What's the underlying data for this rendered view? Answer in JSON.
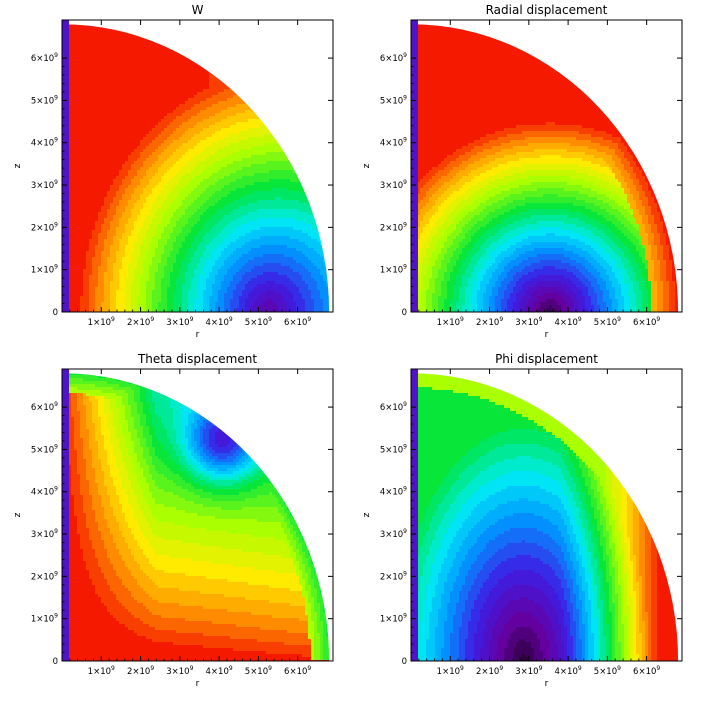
{
  "chart_data": [
    {
      "type": "heatmap",
      "id": "p1",
      "title": "W",
      "xlabel": "r",
      "ylabel": "z",
      "xticks": [
        {
          "mant": "1×10",
          "exp": "9"
        },
        {
          "mant": "2×10",
          "exp": "9"
        },
        {
          "mant": "3×10",
          "exp": "9"
        },
        {
          "mant": "4×10",
          "exp": "9"
        },
        {
          "mant": "5×10",
          "exp": "9"
        },
        {
          "mant": "6×10",
          "exp": "9"
        }
      ],
      "yticks": [
        {
          "mant": "0",
          "exp": ""
        },
        {
          "mant": "1×10",
          "exp": "9"
        },
        {
          "mant": "2×10",
          "exp": "9"
        },
        {
          "mant": "3×10",
          "exp": "9"
        },
        {
          "mant": "4×10",
          "exp": "9"
        },
        {
          "mant": "5×10",
          "exp": "9"
        },
        {
          "mant": "6×10",
          "exp": "9"
        }
      ],
      "xlim": [
        0,
        6900000000.0
      ],
      "ylim": [
        0,
        6900000000.0
      ],
      "domain_radius": 6800000000.0,
      "colormap": "rainbow",
      "levels": 30,
      "field": "w_pattern",
      "feature_center": [
        5250000000.0,
        100000000.0
      ],
      "shading": "filled-contours"
    },
    {
      "type": "heatmap",
      "id": "p2",
      "title": "Radial displacement",
      "xlabel": "r",
      "ylabel": "z",
      "xticks": [
        {
          "mant": "1×10",
          "exp": "9"
        },
        {
          "mant": "2×10",
          "exp": "9"
        },
        {
          "mant": "3×10",
          "exp": "9"
        },
        {
          "mant": "4×10",
          "exp": "9"
        },
        {
          "mant": "5×10",
          "exp": "9"
        },
        {
          "mant": "6×10",
          "exp": "9"
        }
      ],
      "yticks": [
        {
          "mant": "0",
          "exp": ""
        },
        {
          "mant": "1×10",
          "exp": "9"
        },
        {
          "mant": "2×10",
          "exp": "9"
        },
        {
          "mant": "3×10",
          "exp": "9"
        },
        {
          "mant": "4×10",
          "exp": "9"
        },
        {
          "mant": "5×10",
          "exp": "9"
        },
        {
          "mant": "6×10",
          "exp": "9"
        }
      ],
      "xlim": [
        0,
        6900000000.0
      ],
      "ylim": [
        0,
        6900000000.0
      ],
      "domain_radius": 6800000000.0,
      "colormap": "rainbow",
      "levels": 30,
      "field": "radial_pattern",
      "feature_center": [
        3550000000.0,
        0.0
      ],
      "shading": "filled-contours"
    },
    {
      "type": "heatmap",
      "id": "p3",
      "title": "Theta displacement",
      "xlabel": "r",
      "ylabel": "z",
      "xticks": [
        {
          "mant": "1×10",
          "exp": "9"
        },
        {
          "mant": "2×10",
          "exp": "9"
        },
        {
          "mant": "3×10",
          "exp": "9"
        },
        {
          "mant": "4×10",
          "exp": "9"
        },
        {
          "mant": "5×10",
          "exp": "9"
        },
        {
          "mant": "6×10",
          "exp": "9"
        }
      ],
      "yticks": [
        {
          "mant": "0",
          "exp": ""
        },
        {
          "mant": "1×10",
          "exp": "9"
        },
        {
          "mant": "2×10",
          "exp": "9"
        },
        {
          "mant": "3×10",
          "exp": "9"
        },
        {
          "mant": "4×10",
          "exp": "9"
        },
        {
          "mant": "5×10",
          "exp": "9"
        },
        {
          "mant": "6×10",
          "exp": "9"
        }
      ],
      "xlim": [
        0,
        6900000000.0
      ],
      "ylim": [
        0,
        6900000000.0
      ],
      "domain_radius": 6800000000.0,
      "colormap": "rainbow",
      "levels": 30,
      "field": "theta_pattern",
      "feature_center": [
        4100000000.0,
        5200000000.0
      ],
      "shading": "filled-contours"
    },
    {
      "type": "heatmap",
      "id": "p4",
      "title": "Phi displacement",
      "xlabel": "r",
      "ylabel": "z",
      "xticks": [
        {
          "mant": "1×10",
          "exp": "9"
        },
        {
          "mant": "2×10",
          "exp": "9"
        },
        {
          "mant": "3×10",
          "exp": "9"
        },
        {
          "mant": "4×10",
          "exp": "9"
        },
        {
          "mant": "5×10",
          "exp": "9"
        },
        {
          "mant": "6×10",
          "exp": "9"
        }
      ],
      "yticks": [
        {
          "mant": "0",
          "exp": ""
        },
        {
          "mant": "1×10",
          "exp": "9"
        },
        {
          "mant": "2×10",
          "exp": "9"
        },
        {
          "mant": "3×10",
          "exp": "9"
        },
        {
          "mant": "4×10",
          "exp": "9"
        },
        {
          "mant": "5×10",
          "exp": "9"
        },
        {
          "mant": "6×10",
          "exp": "9"
        }
      ],
      "xlim": [
        0,
        6900000000.0
      ],
      "ylim": [
        0,
        6900000000.0
      ],
      "domain_radius": 6800000000.0,
      "colormap": "rainbow",
      "levels": 30,
      "field": "phi_pattern",
      "feature_center": [
        2850000000.0,
        0.0
      ],
      "shading": "filled-contours"
    }
  ]
}
